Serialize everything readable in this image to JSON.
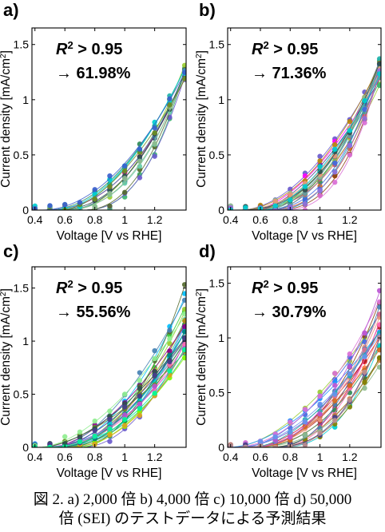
{
  "chart_data": [
    {
      "type": "scatter",
      "panel_label": "a)",
      "annotation_line1": "R",
      "annotation_sup": "2",
      "annotation_line1_rest": " > 0.95",
      "annotation_line2": "→ 61.98%",
      "xlabel": "Voltage [V vs RHE]",
      "ylabel": "Current density [mA/cm",
      "ylabel_sup": "2",
      "ylabel_end": "]",
      "xlim": [
        0.38,
        1.41
      ],
      "ylim": [
        0,
        1.65
      ],
      "xticks": [
        0.4,
        0.6,
        0.8,
        1,
        1.2
      ],
      "xtick_labels": [
        "0.4",
        "0.6",
        "0.8",
        "1",
        "1.2"
      ],
      "yticks": [
        0,
        0.5,
        1,
        1.5
      ],
      "ytick_labels": [
        "0",
        "0.5",
        "1",
        "1.5"
      ],
      "x": [
        0.4,
        0.5,
        0.6,
        0.7,
        0.8,
        0.9,
        1.0,
        1.1,
        1.2,
        1.3,
        1.4
      ],
      "max_current": 1.32,
      "spread": 0.14,
      "n_series": 15,
      "seed": 11,
      "colors": [
        "#2e8b57",
        "#1a3a6b",
        "#3cb371",
        "#6a5acd",
        "#9acd32",
        "#20b2aa",
        "#556b2f",
        "#c71585",
        "#4682b4",
        "#66cdaa",
        "#2f4f4f",
        "#8fbc8f",
        "#00ced1",
        "#6b8e23",
        "#3a5fcd"
      ]
    },
    {
      "type": "scatter",
      "panel_label": "b)",
      "annotation_line1": "R",
      "annotation_sup": "2",
      "annotation_line1_rest": " > 0.95",
      "annotation_line2": "→ 71.36%",
      "xlabel": "Voltage [V vs RHE]",
      "ylabel": "Current density [mA/cm",
      "ylabel_sup": "2",
      "ylabel_end": "]",
      "xlim": [
        0.38,
        1.41
      ],
      "ylim": [
        0,
        1.65
      ],
      "xticks": [
        0.4,
        0.6,
        0.8,
        1,
        1.2
      ],
      "xtick_labels": [
        "0.4",
        "0.6",
        "0.8",
        "1",
        "1.2"
      ],
      "yticks": [
        0,
        0.5,
        1,
        1.5
      ],
      "ytick_labels": [
        "0",
        "0.5",
        "1",
        "1.5"
      ],
      "x": [
        0.4,
        0.5,
        0.6,
        0.7,
        0.8,
        0.9,
        1.0,
        1.1,
        1.2,
        1.3,
        1.4
      ],
      "max_current": 1.38,
      "spread": 0.25,
      "n_series": 22,
      "seed": 23,
      "colors": [
        "#c0504d",
        "#6a5acd",
        "#2e8b57",
        "#d2691e",
        "#ff00ff",
        "#4682b4",
        "#9acd32",
        "#808080",
        "#8b4513",
        "#20b2aa",
        "#483d8b",
        "#cd5c5c",
        "#3cb371",
        "#da70d6",
        "#5f9ea0",
        "#b8860b",
        "#4169e1",
        "#8fbc8f",
        "#e9967a",
        "#2f4f4f",
        "#9370db",
        "#00ced1"
      ]
    },
    {
      "type": "scatter",
      "panel_label": "c)",
      "annotation_line1": "R",
      "annotation_sup": "2",
      "annotation_line1_rest": " > 0.95",
      "annotation_line2": "→ 55.56%",
      "xlabel": "Voltage [V vs RHE]",
      "ylabel": "Current density [mA/cm",
      "ylabel_sup": "2",
      "ylabel_end": "]",
      "xlim": [
        0.38,
        1.41
      ],
      "ylim": [
        0,
        1.7
      ],
      "xticks": [
        0.4,
        0.6,
        0.8,
        1,
        1.2
      ],
      "xtick_labels": [
        "0.4",
        "0.6",
        "0.8",
        "1",
        "1.2"
      ],
      "yticks": [
        0,
        0.5,
        1,
        1.5
      ],
      "ytick_labels": [
        "0",
        "0.5",
        "1",
        "1.5"
      ],
      "x": [
        0.4,
        0.5,
        0.6,
        0.7,
        0.8,
        0.9,
        1.0,
        1.1,
        1.2,
        1.3,
        1.4
      ],
      "max_current": 1.55,
      "spread": 0.72,
      "n_series": 26,
      "seed": 37,
      "colors": [
        "#32cd32",
        "#20b2aa",
        "#2e8b57",
        "#9acd32",
        "#00bfff",
        "#6a5acd",
        "#b8860b",
        "#3cb371",
        "#1e90ff",
        "#8b008b",
        "#66cdaa",
        "#556b2f",
        "#9370db",
        "#00ced1",
        "#228b22",
        "#7fff00",
        "#4682b4",
        "#ff69b4",
        "#daa520",
        "#008080",
        "#6b8e23",
        "#ba55d3",
        "#2f4f4f",
        "#90ee90",
        "#483d8b",
        "#00fa9a"
      ]
    },
    {
      "type": "scatter",
      "panel_label": "d)",
      "annotation_line1": "R",
      "annotation_sup": "2",
      "annotation_line1_rest": " > 0.95",
      "annotation_line2": "→ 30.79%",
      "xlabel": "Voltage [V vs RHE]",
      "ylabel": "Current density [mA/cm",
      "ylabel_sup": "2",
      "ylabel_end": "]",
      "xlim": [
        0.38,
        1.41
      ],
      "ylim": [
        0,
        1.65
      ],
      "xticks": [
        0.4,
        0.6,
        0.8,
        1,
        1.2
      ],
      "xtick_labels": [
        "0.4",
        "0.6",
        "0.8",
        "1",
        "1.2"
      ],
      "yticks": [
        0,
        0.5,
        1,
        1.5
      ],
      "ytick_labels": [
        "0",
        "0.5",
        "1",
        "1.5"
      ],
      "x": [
        0.4,
        0.5,
        0.6,
        0.7,
        0.8,
        0.9,
        1.0,
        1.1,
        1.2,
        1.3,
        1.4
      ],
      "max_current": 1.45,
      "spread": 0.7,
      "n_series": 26,
      "seed": 53,
      "colors": [
        "#9acd32",
        "#8b4513",
        "#c71585",
        "#4169e1",
        "#dc143c",
        "#ff7f50",
        "#2e8b57",
        "#6a5acd",
        "#b22222",
        "#00ced1",
        "#ff69b4",
        "#556b2f",
        "#cd853f",
        "#1e90ff",
        "#da70d6",
        "#808000",
        "#e9967a",
        "#4682b4",
        "#8fbc8f",
        "#db7093",
        "#483d8b",
        "#d2691e",
        "#20b2aa",
        "#ba55d3",
        "#6495ed",
        "#bc8f8f"
      ]
    }
  ],
  "caption": {
    "line1": "図 2. a) 2,000 倍  b) 4,000 倍  c) 10,000 倍  d) 50,000",
    "line2": "倍 (SEI) のテストデータによる予測結果"
  }
}
